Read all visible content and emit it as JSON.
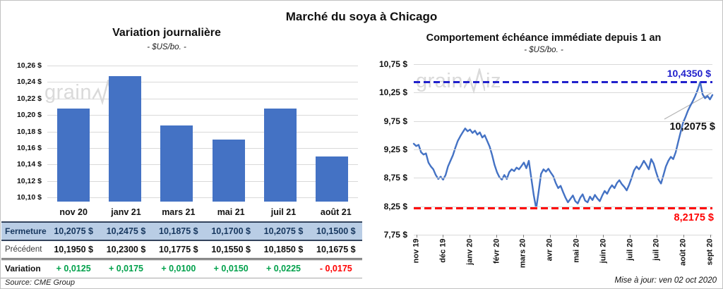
{
  "page": {
    "title": "Marché du soya à Chicago",
    "source_note": "Source: CME Group",
    "update_note": "Mise à jour: ven 02 oct 2020"
  },
  "watermark": {
    "left_text": "grain",
    "right_prefix": "grain",
    "right_suffix": "iz"
  },
  "colors": {
    "bar_blue": "#4472C4",
    "line_blue": "#4472C4",
    "max_line_blue": "#2121CC",
    "min_line_red": "#FF0000",
    "positive_green": "#00A14B",
    "negative_red": "#FF0000",
    "fermeture_bg": "#B9CDE5",
    "fermeture_text": "#17375E",
    "gridline": "#D9D9D9",
    "watermark_gray": "#DADADA"
  },
  "chart_data": [
    {
      "type": "bar",
      "title": "Variation journalière",
      "subtitle": "- $US/bo. -",
      "categories": [
        "nov 20",
        "janv 21",
        "mars 21",
        "mai 21",
        "juil 21",
        "août 21"
      ],
      "values": [
        10.2075,
        10.2475,
        10.1875,
        10.17,
        10.2075,
        10.15
      ],
      "ylim": [
        10.095,
        10.26
      ],
      "y_tick_values": [
        10.26,
        10.24,
        10.22,
        10.2,
        10.18,
        10.16,
        10.14,
        10.12,
        10.1
      ],
      "y_tick_labels": [
        "10,26 $",
        "10,24 $",
        "10,22 $",
        "10,20 $",
        "10,18 $",
        "10,16 $",
        "10,14 $",
        "10,12 $",
        "10,10 $"
      ],
      "bar_color": "#4472C4",
      "grid": true,
      "legend": "none"
    },
    {
      "type": "line",
      "title": "Comportement échéance immédiate depuis 1 an",
      "subtitle": "- $US/bo. -",
      "x_ticks": [
        "nov 19",
        "déc 19",
        "janv 20",
        "févr 20",
        "mars 20",
        "avr 20",
        "mai 20",
        "juin 20",
        "juil 20",
        "juil 20",
        "août 20",
        "sept 20"
      ],
      "ylim": [
        7.75,
        10.75
      ],
      "y_tick_values": [
        10.75,
        10.25,
        9.75,
        9.25,
        8.75,
        8.25,
        7.75
      ],
      "y_tick_labels": [
        "10,75 $",
        "10,25 $",
        "9,75 $",
        "9,25 $",
        "8,75 $",
        "8,25 $",
        "7,75 $"
      ],
      "line_color": "#4472C4",
      "grid": true,
      "legend": "none",
      "max_line": {
        "value": 10.435,
        "label": "10,4350 $",
        "color": "#2121CC"
      },
      "min_line": {
        "value": 8.2175,
        "label": "8,2175 $",
        "color": "#FF0000"
      },
      "last_value": 10.2075,
      "last_label": "10,2075 $",
      "values": [
        9.35,
        9.31,
        9.33,
        9.2,
        9.16,
        9.18,
        9.02,
        8.95,
        8.9,
        8.8,
        8.73,
        8.77,
        8.72,
        8.8,
        8.95,
        9.05,
        9.15,
        9.28,
        9.4,
        9.48,
        9.55,
        9.62,
        9.57,
        9.6,
        9.54,
        9.58,
        9.51,
        9.55,
        9.46,
        9.5,
        9.4,
        9.3,
        9.15,
        8.98,
        8.85,
        8.76,
        8.72,
        8.8,
        8.73,
        8.85,
        8.9,
        8.87,
        8.93,
        8.9,
        8.96,
        9.02,
        8.92,
        9.05,
        8.75,
        8.45,
        8.21,
        8.5,
        8.82,
        8.9,
        8.86,
        8.91,
        8.84,
        8.78,
        8.66,
        8.57,
        8.61,
        8.5,
        8.4,
        8.32,
        8.38,
        8.44,
        8.34,
        8.3,
        8.4,
        8.46,
        8.35,
        8.32,
        8.42,
        8.36,
        8.45,
        8.39,
        8.34,
        8.44,
        8.52,
        8.47,
        8.56,
        8.62,
        8.57,
        8.66,
        8.71,
        8.64,
        8.59,
        8.53,
        8.63,
        8.75,
        8.88,
        8.95,
        8.9,
        8.97,
        9.05,
        8.98,
        8.9,
        9.08,
        9.0,
        8.85,
        8.72,
        8.65,
        8.8,
        8.95,
        9.05,
        9.12,
        9.08,
        9.2,
        9.38,
        9.55,
        9.72,
        9.82,
        9.93,
        10.02,
        10.1,
        10.19,
        10.3,
        10.435,
        10.22,
        10.15,
        10.19,
        10.13,
        10.2075
      ]
    }
  ],
  "table": {
    "rows": [
      {
        "name": "fermeture",
        "label": "Fermeture",
        "values": [
          "10,2075 $",
          "10,2475 $",
          "10,1875 $",
          "10,1700 $",
          "10,2075 $",
          "10,1500 $"
        ]
      },
      {
        "name": "precedent",
        "label": "Précédent",
        "values": [
          "10,1950 $",
          "10,2300 $",
          "10,1775 $",
          "10,1550 $",
          "10,1850 $",
          "10,1675 $"
        ]
      },
      {
        "name": "variation",
        "label": "Variation",
        "values": [
          "+ 0,0125",
          "+ 0,0175",
          "+ 0,0100",
          "+ 0,0150",
          "+ 0,0225",
          "- 0,0175"
        ],
        "signed": true
      }
    ]
  }
}
